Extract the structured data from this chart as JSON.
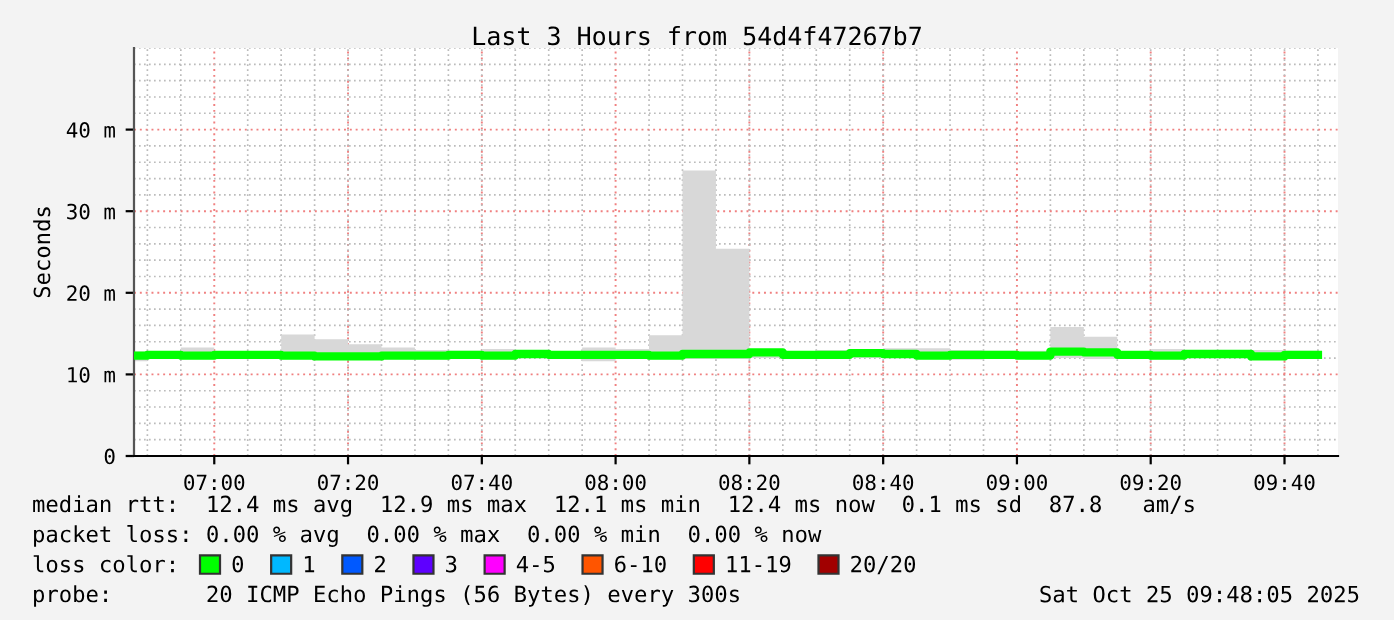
{
  "chart_data": {
    "type": "step",
    "title": "Last 3 Hours from 54d4f47267b7",
    "ylabel": "Seconds",
    "x": [
      6.8,
      6.8333,
      6.9167,
      7.0,
      7.0833,
      7.1667,
      7.25,
      7.3333,
      7.4167,
      7.5,
      7.5833,
      7.6667,
      7.75,
      7.8333,
      7.9167,
      8.0,
      8.0833,
      8.1667,
      8.25,
      8.3333,
      8.4167,
      8.5,
      8.5833,
      8.6667,
      8.75,
      8.8333,
      8.9167,
      9.0,
      9.0833,
      9.1667,
      9.25,
      9.3333,
      9.4167,
      9.5,
      9.5833,
      9.6667,
      9.75
    ],
    "series": [
      {
        "name": "0",
        "color": "#00ff00",
        "values": [
          12.3,
          12.4,
          12.3,
          12.4,
          12.4,
          12.3,
          12.2,
          12.2,
          12.3,
          12.3,
          12.4,
          12.3,
          12.5,
          12.4,
          12.4,
          12.4,
          12.3,
          12.5,
          12.5,
          12.7,
          12.4,
          12.4,
          12.6,
          12.5,
          12.3,
          12.4,
          12.4,
          12.3,
          12.8,
          12.7,
          12.4,
          12.3,
          12.5,
          12.5,
          12.2,
          12.4,
          12.4
        ],
        "lower": [
          11.6,
          12.0,
          12.0,
          12.0,
          12.0,
          11.9,
          11.8,
          11.8,
          12.0,
          11.9,
          12.0,
          12.0,
          12.0,
          12.0,
          11.6,
          12.0,
          11.9,
          11.9,
          11.9,
          12.0,
          12.0,
          11.9,
          12.0,
          12.0,
          11.9,
          11.8,
          12.0,
          11.9,
          12.0,
          11.9,
          12.0,
          12.0,
          12.0,
          12.0,
          11.8,
          12.0,
          12.0
        ],
        "upper": [
          12.8,
          12.8,
          13.3,
          12.6,
          12.6,
          14.9,
          14.3,
          13.7,
          13.3,
          13.0,
          12.9,
          13.1,
          12.9,
          12.7,
          13.3,
          13.1,
          14.8,
          35.0,
          25.4,
          12.8,
          12.7,
          13.0,
          13.0,
          13.2,
          13.2,
          13.0,
          12.9,
          12.9,
          15.8,
          14.6,
          12.6,
          13.1,
          13.0,
          12.9,
          13.0,
          12.9,
          12.9
        ]
      },
      {
        "name": "1",
        "color": "#00b8ff",
        "values": [
          null,
          null,
          null,
          null,
          null,
          null,
          null,
          null,
          null,
          null,
          null,
          null,
          null,
          null,
          null,
          null,
          null,
          null,
          null,
          null,
          null,
          null,
          null,
          null,
          null,
          null,
          null,
          null,
          null,
          null,
          null,
          null,
          null,
          null,
          null,
          null,
          null
        ]
      },
      {
        "name": "2",
        "color": "#0059ff",
        "values": [
          null,
          null,
          null,
          null,
          null,
          null,
          null,
          null,
          null,
          null,
          null,
          null,
          null,
          null,
          null,
          null,
          null,
          null,
          null,
          null,
          null,
          null,
          null,
          null,
          null,
          null,
          null,
          null,
          null,
          null,
          null,
          null,
          null,
          null,
          null,
          null,
          null
        ]
      },
      {
        "name": "3",
        "color": "#5e00ff",
        "values": [
          null,
          null,
          null,
          null,
          null,
          null,
          null,
          null,
          null,
          null,
          null,
          null,
          null,
          null,
          null,
          null,
          null,
          null,
          null,
          null,
          null,
          null,
          null,
          null,
          null,
          null,
          null,
          null,
          null,
          null,
          null,
          null,
          null,
          null,
          null,
          null,
          null
        ]
      },
      {
        "name": "4-5",
        "color": "#ff00ff",
        "values": [
          null,
          null,
          null,
          null,
          null,
          null,
          null,
          null,
          null,
          null,
          null,
          null,
          null,
          null,
          null,
          null,
          null,
          null,
          null,
          null,
          null,
          null,
          null,
          null,
          null,
          null,
          null,
          null,
          null,
          null,
          null,
          null,
          null,
          null,
          null,
          null,
          null
        ]
      },
      {
        "name": "6-10",
        "color": "#ff5500",
        "values": [
          null,
          null,
          null,
          null,
          null,
          null,
          null,
          null,
          null,
          null,
          null,
          null,
          null,
          null,
          null,
          null,
          null,
          null,
          null,
          null,
          null,
          null,
          null,
          null,
          null,
          null,
          null,
          null,
          null,
          null,
          null,
          null,
          null,
          null,
          null,
          null,
          null
        ]
      },
      {
        "name": "11-19",
        "color": "#ff0000",
        "values": [
          null,
          null,
          null,
          null,
          null,
          null,
          null,
          null,
          null,
          null,
          null,
          null,
          null,
          null,
          null,
          null,
          null,
          null,
          null,
          null,
          null,
          null,
          null,
          null,
          null,
          null,
          null,
          null,
          null,
          null,
          null,
          null,
          null,
          null,
          null,
          null,
          null
        ]
      },
      {
        "name": "20/20",
        "color": "#a10000",
        "values": [
          null,
          null,
          null,
          null,
          null,
          null,
          null,
          null,
          null,
          null,
          null,
          null,
          null,
          null,
          null,
          null,
          null,
          null,
          null,
          null,
          null,
          null,
          null,
          null,
          null,
          null,
          null,
          null,
          null,
          null,
          null,
          null,
          null,
          null,
          null,
          null,
          null
        ]
      }
    ],
    "legend": "bottom",
    "legend_title": "loss color:",
    "xlim": [
      6.8,
      9.8
    ],
    "xticks": [
      {
        "value": 7.0,
        "label": "07:00"
      },
      {
        "value": 7.3333,
        "label": "07:20"
      },
      {
        "value": 7.6667,
        "label": "07:40"
      },
      {
        "value": 8.0,
        "label": "08:00"
      },
      {
        "value": 8.3333,
        "label": "08:20"
      },
      {
        "value": 8.6667,
        "label": "08:40"
      },
      {
        "value": 9.0,
        "label": "09:00"
      },
      {
        "value": 9.3333,
        "label": "09:20"
      },
      {
        "value": 9.6667,
        "label": "09:40"
      }
    ],
    "ylim": [
      0,
      50
    ],
    "yticks": [
      0,
      {
        "value": 10,
        "label": "10 m"
      },
      {
        "value": 20,
        "label": "20 m"
      },
      {
        "value": 30,
        "label": "30 m"
      },
      {
        "value": 40,
        "label": "40 m"
      }
    ],
    "grid": true,
    "annotations": [
      "median rtt:  12.4 ms avg  12.9 ms max  12.1 ms min  12.4 ms now  0.1 ms sd  87.8   am/s",
      "packet loss: 0.00 % avg  0.00 % max  0.00 % min  0.00 % now",
      "probe:       20 ICMP Echo Pings (56 Bytes) every 300s",
      "Sat Oct 25 09:48:05 2025"
    ]
  }
}
